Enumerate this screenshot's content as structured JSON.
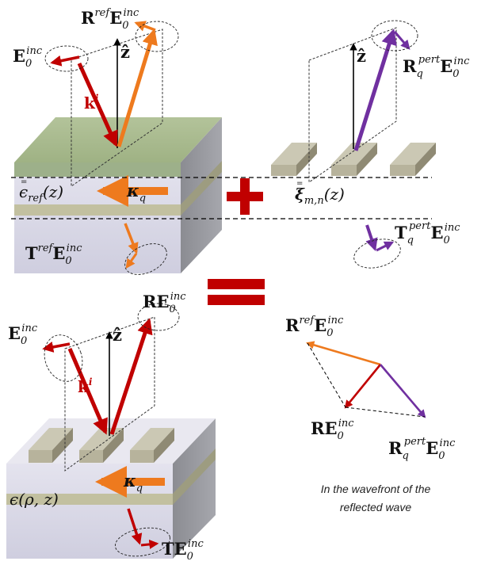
{
  "labels": {
    "tl_e_inc": {
      "main": "E",
      "sub": "0",
      "sup": "inc"
    },
    "tl_r_ref": {
      "main": "R",
      "sup1": "ref",
      "main2": "E",
      "sub": "0",
      "sup": "inc"
    },
    "tl_z": "ẑ",
    "tl_k": {
      "main": "k",
      "sup": "i"
    },
    "tl_eps": {
      "main": "ϵ",
      "sub": "ref",
      "tail": "(z)"
    },
    "tl_kappa": {
      "main": "κ",
      "sub": "q"
    },
    "tl_t_ref": {
      "main": "T",
      "sup1": "ref",
      "main2": "E",
      "sub": "0",
      "sup": "inc"
    },
    "tr_z": "ẑ",
    "tr_r_pert": {
      "main": "R",
      "sub1": "q",
      "sup1": "pert",
      "main2": "E",
      "sub": "0",
      "sup": "inc"
    },
    "tr_xi": {
      "main": "ξ",
      "sub": "m,n",
      "tail": "(z)"
    },
    "tr_t_pert": {
      "main": "T",
      "sub1": "q",
      "sup1": "pert",
      "main2": "E",
      "sub": "0",
      "sup": "inc"
    },
    "bl_e_inc": {
      "main": "E",
      "sub": "0",
      "sup": "inc"
    },
    "bl_re": {
      "main": "RE",
      "sub": "0",
      "sup": "inc"
    },
    "bl_z": "ẑ",
    "bl_k": {
      "main": "k",
      "sup": "i"
    },
    "bl_eps": {
      "main": "ϵ(ρ, z)"
    },
    "bl_kappa": {
      "main": "κ",
      "sub": "q"
    },
    "bl_te": {
      "main": "TE",
      "sub": "0",
      "sup": "inc"
    },
    "br_r_ref": {
      "main": "R",
      "sup1": "ref",
      "main2": "E",
      "sub": "0",
      "sup": "inc"
    },
    "br_re": {
      "main": "RE",
      "sub": "0",
      "sup": "inc"
    },
    "br_r_pert": {
      "main": "R",
      "sub1": "q",
      "sup1": "pert",
      "main2": "E",
      "sub": "0",
      "sup": "inc"
    }
  },
  "caption_lines": [
    "In the wavefront of the",
    "reflected wave"
  ],
  "colors": {
    "incident": "#c00000",
    "reflected_ref": "#ee7a1e",
    "perturbed": "#7030a0",
    "operator_red": "#c00000",
    "slab_top": "#a4b68a",
    "slab_side": "#8e8f94",
    "slab_front": "#d9d8e6",
    "layer": "#c2c0a0",
    "grating": "#bab6a0",
    "grating_dark": "#8f8a74"
  },
  "icons": {
    "plus": "plus-icon",
    "equals": "equals-icon"
  }
}
